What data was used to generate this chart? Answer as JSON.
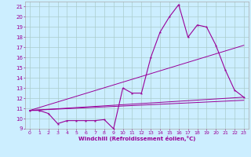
{
  "title": "",
  "xlabel": "Windchill (Refroidissement éolien,°C)",
  "background_color": "#cceeff",
  "grid_color": "#aacccc",
  "line_color": "#990099",
  "xlim": [
    -0.5,
    23.5
  ],
  "ylim": [
    9,
    21.5
  ],
  "xticks": [
    0,
    1,
    2,
    3,
    4,
    5,
    6,
    7,
    8,
    9,
    10,
    11,
    12,
    13,
    14,
    15,
    16,
    17,
    18,
    19,
    20,
    21,
    22,
    23
  ],
  "yticks": [
    9,
    10,
    11,
    12,
    13,
    14,
    15,
    16,
    17,
    18,
    19,
    20,
    21
  ],
  "series_main": {
    "x": [
      0,
      1,
      2,
      3,
      4,
      5,
      6,
      7,
      8,
      9,
      10,
      11,
      12,
      13,
      14,
      15,
      16,
      17,
      18,
      19,
      20,
      21,
      22,
      23
    ],
    "y": [
      10.8,
      10.8,
      10.5,
      9.5,
      9.8,
      9.8,
      9.8,
      9.8,
      9.9,
      9.0,
      13.0,
      12.5,
      12.5,
      16.0,
      18.5,
      20.0,
      21.2,
      18.0,
      19.2,
      19.0,
      17.2,
      14.8,
      12.8,
      12.1
    ]
  },
  "series_lines": [
    {
      "x": [
        0,
        23
      ],
      "y": [
        10.8,
        11.8
      ]
    },
    {
      "x": [
        0,
        23
      ],
      "y": [
        10.8,
        12.1
      ]
    },
    {
      "x": [
        0,
        23
      ],
      "y": [
        10.8,
        17.2
      ]
    }
  ]
}
